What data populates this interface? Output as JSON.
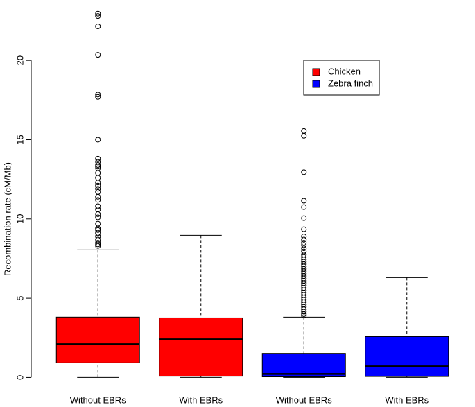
{
  "chart_data": {
    "type": "box",
    "y_label": "Recombination rate (cM/Mb)",
    "categories": [
      "Without EBRs",
      "With EBRs",
      "Without EBRs",
      "With EBRs"
    ],
    "ylim": [
      -0.9,
      23.9
    ],
    "yticks": [
      0,
      5,
      10,
      15,
      20
    ],
    "legend": "top-right",
    "series": [
      {
        "name": "Chicken",
        "color": "#ff0000",
        "boxes": [
          {
            "min": 0,
            "q1": 0.92,
            "median": 2.1,
            "q3": 3.81,
            "max": 8.05,
            "outliers": [
              22.95,
              22.8,
              22.15,
              20.35,
              17.85,
              17.7,
              15.0,
              13.8,
              13.6,
              13.4,
              13.3,
              13.2,
              12.9,
              12.6,
              12.3,
              12.1,
              11.9,
              11.7,
              11.4,
              11.2,
              10.8,
              10.6,
              10.3,
              10.1,
              9.7,
              9.4,
              9.3,
              9.1,
              8.9,
              8.7,
              8.5,
              8.4,
              8.3
            ]
          },
          {
            "min": 0,
            "q1": 0.08,
            "median": 2.41,
            "q3": 3.76,
            "max": 8.97,
            "outliers": []
          }
        ]
      },
      {
        "name": "Zebra finch",
        "color": "#0000ff",
        "boxes": [
          {
            "min": 0,
            "q1": 0.04,
            "median": 0.22,
            "q3": 1.52,
            "max": 3.81,
            "outliers": [
              15.55,
              15.25,
              12.95,
              11.15,
              10.75,
              10.05,
              9.35,
              8.9,
              8.7,
              8.5,
              8.35,
              8.15,
              7.95,
              7.75,
              7.6,
              7.45,
              7.3,
              7.15,
              7.0,
              6.85,
              6.7,
              6.55,
              6.4,
              6.25,
              6.1,
              5.95,
              5.8,
              5.65,
              5.5,
              5.35,
              5.2,
              5.05,
              4.9,
              4.75,
              4.6,
              4.45,
              4.3,
              4.15,
              4.0,
              3.9
            ]
          },
          {
            "min": 0,
            "q1": 0.06,
            "median": 0.7,
            "q3": 2.58,
            "max": 6.3,
            "outliers": []
          }
        ]
      }
    ]
  }
}
